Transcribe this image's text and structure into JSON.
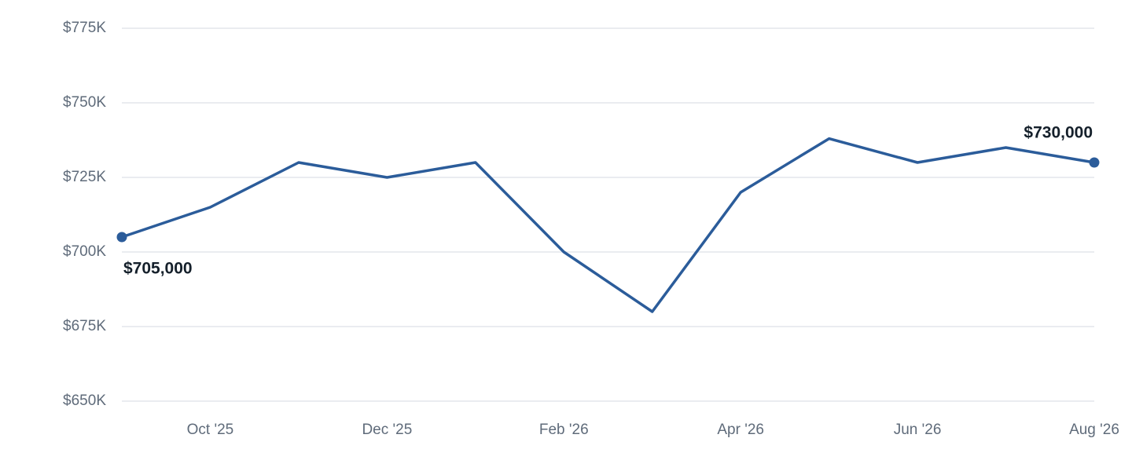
{
  "chart_data": {
    "type": "line",
    "categories": [
      null,
      "Oct '25",
      null,
      "Dec '25",
      null,
      "Feb '26",
      null,
      "Apr '26",
      null,
      "Jun '26",
      null,
      "Aug '26"
    ],
    "series": [
      {
        "color": "#2b5c9a",
        "values": [
          705000,
          715000,
          730000,
          725000,
          730000,
          700000,
          680000,
          720000,
          738000,
          730000,
          735000,
          730000
        ],
        "value_labels": [
          "$705,000",
          null,
          null,
          null,
          null,
          null,
          null,
          null,
          null,
          null,
          null,
          "$730,000"
        ]
      }
    ],
    "ylim": [
      650000,
      775000
    ],
    "yticks": [
      {
        "value": 650000,
        "label": "$650K"
      },
      {
        "value": 675000,
        "label": "$675K"
      },
      {
        "value": 700000,
        "label": "$700K"
      },
      {
        "value": 725000,
        "label": "$725K"
      },
      {
        "value": 750000,
        "label": "$750K"
      },
      {
        "value": 775000,
        "label": "$775K"
      }
    ],
    "grid": true
  }
}
